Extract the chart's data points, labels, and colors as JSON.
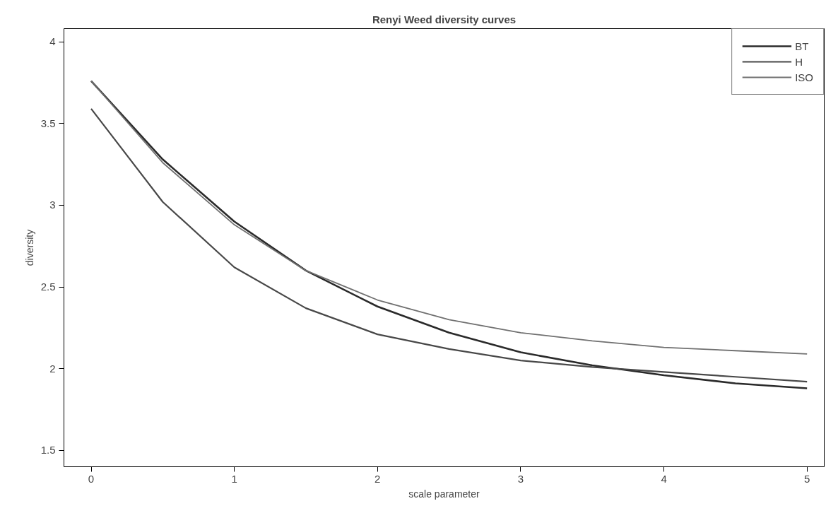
{
  "chart_data": {
    "type": "line",
    "title": "Renyi Weed diversity curves",
    "xlabel": "scale parameter",
    "ylabel": "diversity",
    "x": [
      0,
      0.5,
      1,
      1.5,
      2,
      2.5,
      3,
      3.5,
      4,
      4.5,
      5
    ],
    "series": [
      {
        "name": "BT",
        "color": "#2a2a2a",
        "values": [
          3.76,
          3.28,
          2.9,
          2.6,
          2.38,
          2.22,
          2.1,
          2.02,
          1.96,
          1.91,
          1.88
        ]
      },
      {
        "name": "H",
        "color": "#484848",
        "values": [
          3.59,
          3.02,
          2.62,
          2.37,
          2.21,
          2.12,
          2.05,
          2.01,
          1.98,
          1.95,
          1.92
        ]
      },
      {
        "name": "ISO",
        "color": "#707070",
        "values": [
          3.76,
          3.26,
          2.88,
          2.6,
          2.42,
          2.3,
          2.22,
          2.17,
          2.13,
          2.11,
          2.09
        ]
      }
    ],
    "xlim": [
      -0.19,
      5.12
    ],
    "ylim": [
      1.4,
      4.08
    ],
    "xticks": [
      0,
      1,
      2,
      3,
      4,
      5
    ],
    "yticks": [
      1.5,
      2.0,
      2.5,
      3.0,
      3.5,
      4.0
    ],
    "grid": false,
    "legend": "top right",
    "marker": "none",
    "line_style": "solid"
  }
}
